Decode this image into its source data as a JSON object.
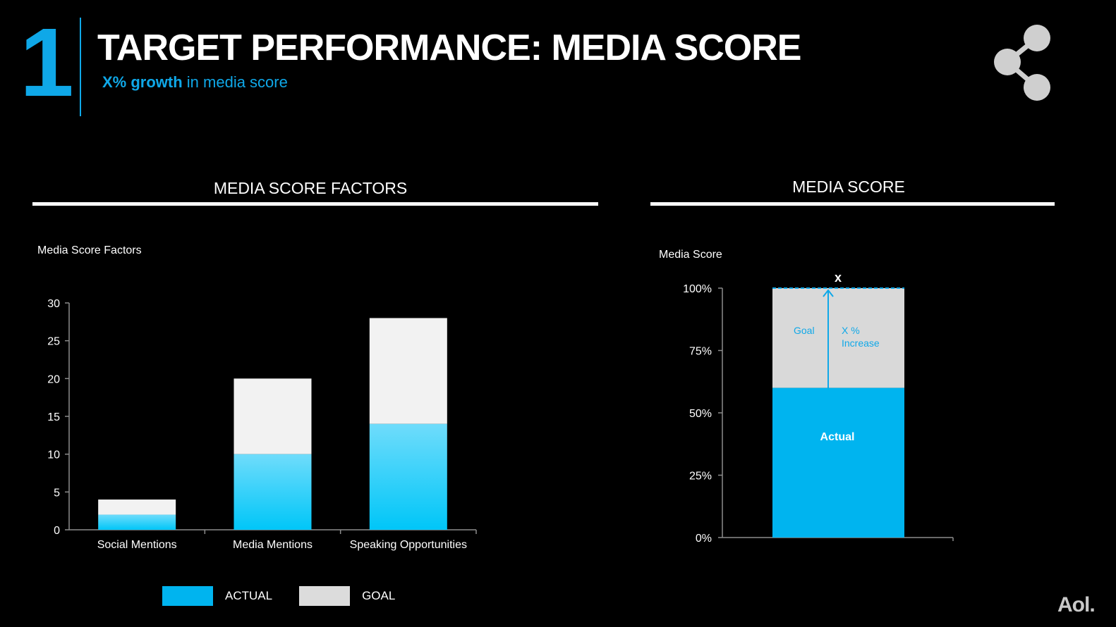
{
  "header": {
    "number": "1",
    "title": "TARGET PERFORMANCE: MEDIA SCORE",
    "subtitle_bold": "X% growth",
    "subtitle_rest": " in media score",
    "icon": "share-icon"
  },
  "sections": {
    "left_title": "MEDIA SCORE FACTORS",
    "right_title": "MEDIA SCORE"
  },
  "colors": {
    "accent": "#0fa8e8",
    "actual": "#00b4ef",
    "goal_light": "#f2f2f2",
    "goal_gray": "#d9d9d9",
    "axis": "#8c8c8c"
  },
  "legend": {
    "actual_label": "ACTUAL",
    "goal_label": "GOAL"
  },
  "footer": {
    "logo": "Aol."
  },
  "chart_data": [
    {
      "type": "bar",
      "stacked": true,
      "title": "Media Score Factors",
      "categories": [
        "Social Mentions",
        "Media Mentions",
        "Speaking Opportunities"
      ],
      "series": [
        {
          "name": "ACTUAL",
          "values": [
            2,
            10,
            14
          ]
        },
        {
          "name": "GOAL",
          "values": [
            2,
            10,
            14
          ]
        }
      ],
      "ylim": [
        0,
        30
      ],
      "yticks": [
        "0",
        "5",
        "10",
        "15",
        "20",
        "25",
        "30"
      ],
      "legend": "bottom"
    },
    {
      "type": "bar",
      "stacked": true,
      "title": "Media Score",
      "categories": [
        ""
      ],
      "series": [
        {
          "name": "Actual",
          "values": [
            60
          ]
        },
        {
          "name": "Goal",
          "values": [
            40
          ]
        }
      ],
      "ylim": [
        0,
        100
      ],
      "yticks": [
        "0%",
        "25%",
        "50%",
        "75%",
        "100%"
      ],
      "labels": {
        "actual": "Actual",
        "goal": "Goal",
        "increase_line1": "X %",
        "increase_line2": "Increase",
        "target_marker": "x"
      }
    }
  ]
}
